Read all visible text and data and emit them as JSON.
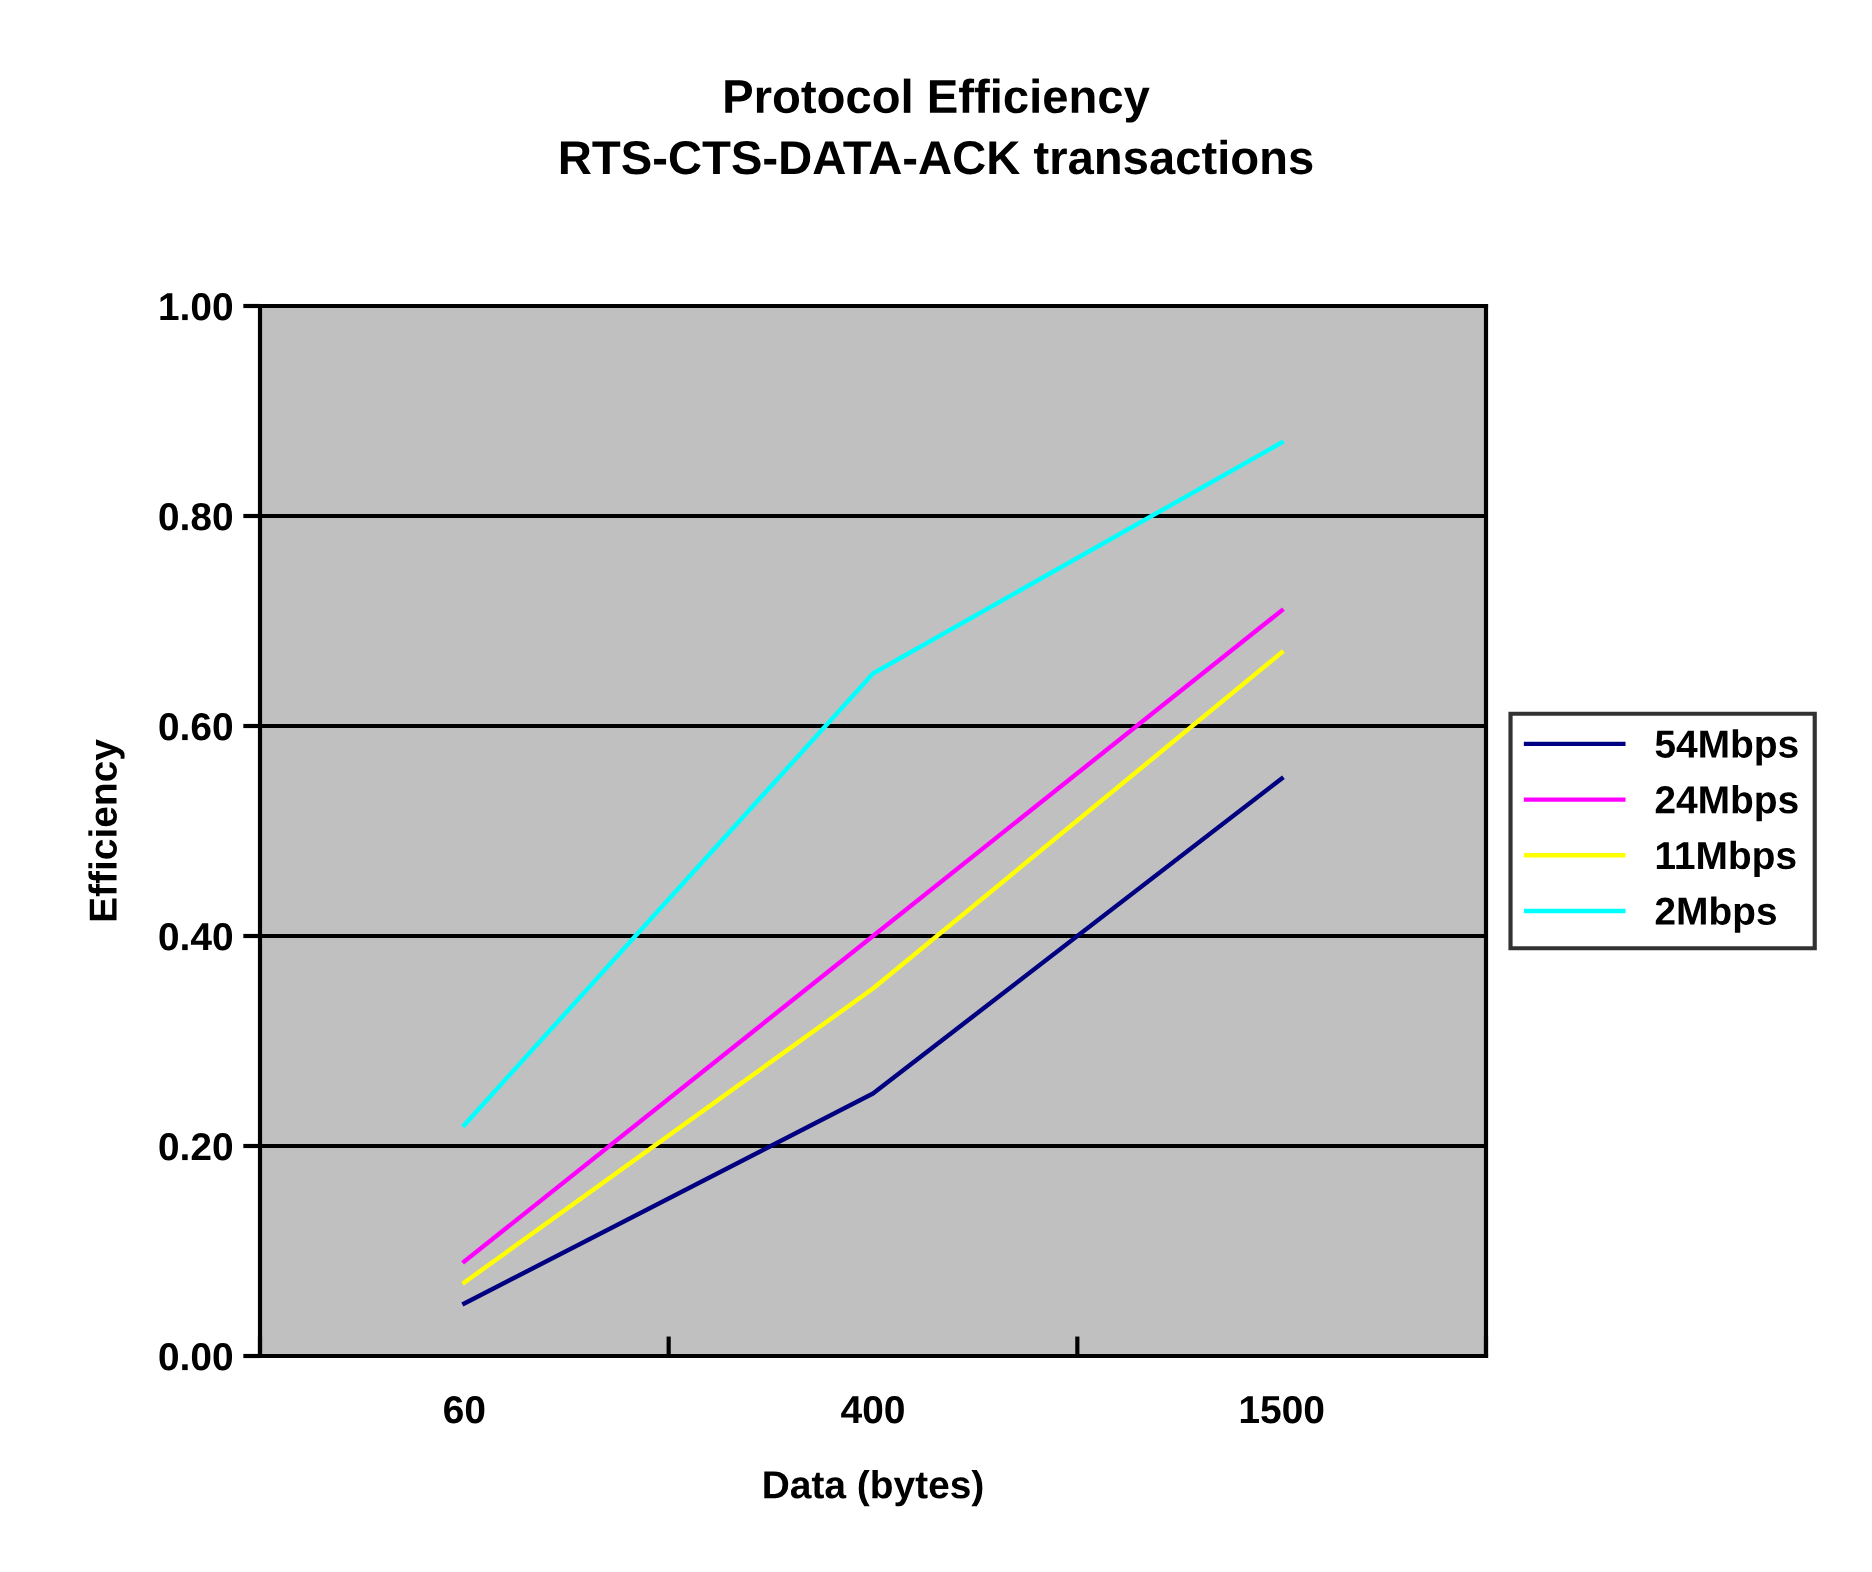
{
  "chart_data": {
    "type": "line",
    "title": "Protocol Efficiency\nRTS-CTS-DATA-ACK transactions",
    "xlabel": "Data (bytes)",
    "ylabel": "Efficiency",
    "categories": [
      "60",
      "400",
      "1500"
    ],
    "series": [
      {
        "name": "54Mbps",
        "color": "#000080",
        "values": [
          0.05,
          0.25,
          0.55
        ]
      },
      {
        "name": "24Mbps",
        "color": "#ff00ff",
        "values": [
          0.09,
          0.4,
          0.71
        ]
      },
      {
        "name": "11Mbps",
        "color": "#ffff00",
        "values": [
          0.07,
          0.35,
          0.67
        ]
      },
      {
        "name": "2Mbps",
        "color": "#00ffff",
        "values": [
          0.22,
          0.65,
          0.87
        ]
      }
    ],
    "ylim": [
      0,
      1
    ],
    "yticks": [
      {
        "value": 0,
        "label": "0.00"
      },
      {
        "value": 0.2,
        "label": "0.20"
      },
      {
        "value": 0.4,
        "label": "0.40"
      },
      {
        "value": 0.6,
        "label": "0.60"
      },
      {
        "value": 0.8,
        "label": "0.80"
      },
      {
        "value": 1,
        "label": "1.00"
      }
    ],
    "grid": "y",
    "legend": "right",
    "marker": "none",
    "line_style": "solid"
  }
}
